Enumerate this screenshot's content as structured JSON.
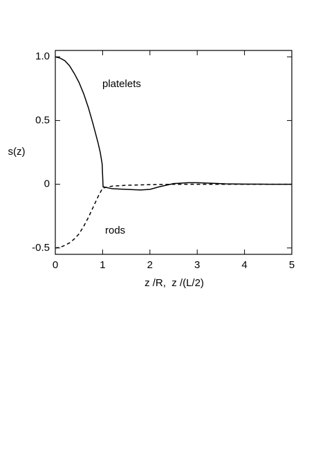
{
  "chart_data": {
    "type": "line",
    "y_label": "s(z)",
    "x_label": "z /R,  z /(L/2)",
    "xlim": [
      0,
      5
    ],
    "xticks": [
      0,
      1,
      2,
      3,
      4,
      5
    ],
    "ylim": [
      -0.55,
      1.05
    ],
    "yticks": [
      {
        "value": 1,
        "label": "1.0"
      },
      0.5,
      0,
      -0.5
    ],
    "series": [
      {
        "name": "platelets",
        "color": "#000000",
        "dash": "solid",
        "x": [
          0,
          0.1,
          0.2,
          0.3,
          0.4,
          0.5,
          0.6,
          0.7,
          0.8,
          0.9,
          0.95,
          0.99,
          1.01,
          1.2,
          1.5,
          1.8,
          2.0,
          2.2,
          2.5,
          2.8,
          3.0,
          3.3,
          3.6,
          4,
          4.5,
          5
        ],
        "values": [
          1,
          0.99,
          0.97,
          0.93,
          0.87,
          0.8,
          0.71,
          0.6,
          0.47,
          0.33,
          0.25,
          0.16,
          -0.02,
          -0.035,
          -0.04,
          -0.045,
          -0.04,
          -0.02,
          0.005,
          0.012,
          0.012,
          0.008,
          0.003,
          0.001,
          0,
          0
        ]
      },
      {
        "name": "rods",
        "color": "#000000",
        "dash": "dashed",
        "x": [
          0,
          0.1,
          0.2,
          0.3,
          0.4,
          0.5,
          0.6,
          0.7,
          0.8,
          0.9,
          1.0,
          1.2,
          1.5,
          2,
          2.5,
          3,
          4,
          5
        ],
        "values": [
          -0.5,
          -0.495,
          -0.48,
          -0.46,
          -0.43,
          -0.39,
          -0.33,
          -0.26,
          -0.18,
          -0.1,
          -0.03,
          -0.015,
          -0.008,
          -0.003,
          0,
          0,
          0,
          0
        ]
      }
    ]
  }
}
